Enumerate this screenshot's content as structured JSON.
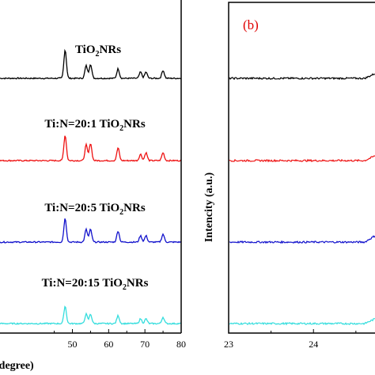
{
  "chart_data": [
    {
      "type": "line",
      "panel": "left",
      "title": "",
      "xlabel": "(degree)",
      "ylabel": "",
      "xlim": [
        20,
        80
      ],
      "xticks": [
        50,
        60,
        70,
        80
      ],
      "grid": false,
      "series": [
        {
          "name": "TiO2NRs",
          "label_main": "TiO",
          "label_sub": "2",
          "label_tail": "NRs",
          "color": "#000000",
          "peaks": [
            {
              "x": 48.0,
              "h": 36
            },
            {
              "x": 53.8,
              "h": 16
            },
            {
              "x": 55.0,
              "h": 18
            },
            {
              "x": 62.6,
              "h": 12
            },
            {
              "x": 68.8,
              "h": 8
            },
            {
              "x": 70.3,
              "h": 8
            },
            {
              "x": 75.0,
              "h": 10
            }
          ]
        },
        {
          "name": "Ti:N=20:1 TiO2NRs",
          "label_main": "Ti:N=20:1 TiO",
          "label_sub": "2",
          "label_tail": "NRs",
          "color": "#ee1111",
          "peaks": [
            {
              "x": 48.0,
              "h": 32
            },
            {
              "x": 53.8,
              "h": 20
            },
            {
              "x": 55.0,
              "h": 22
            },
            {
              "x": 62.6,
              "h": 16
            },
            {
              "x": 68.8,
              "h": 8
            },
            {
              "x": 70.3,
              "h": 10
            },
            {
              "x": 75.0,
              "h": 10
            }
          ]
        },
        {
          "name": "Ti:N=20:5 TiO2NRs",
          "label_main": "Ti:N=20:5 TiO",
          "label_sub": "2",
          "label_tail": "NRs",
          "color": "#1111cc",
          "peaks": [
            {
              "x": 48.0,
              "h": 30
            },
            {
              "x": 53.8,
              "h": 16
            },
            {
              "x": 55.0,
              "h": 16
            },
            {
              "x": 62.6,
              "h": 14
            },
            {
              "x": 68.8,
              "h": 8
            },
            {
              "x": 70.3,
              "h": 8
            },
            {
              "x": 75.0,
              "h": 10
            }
          ]
        },
        {
          "name": "Ti:N=20:15 TiO2NRs",
          "label_main": "Ti:N=20:15 TiO",
          "label_sub": "2",
          "label_tail": "NRs",
          "color": "#33dddd",
          "peaks": [
            {
              "x": 48.0,
              "h": 22
            },
            {
              "x": 53.8,
              "h": 12
            },
            {
              "x": 55.0,
              "h": 12
            },
            {
              "x": 62.6,
              "h": 10
            },
            {
              "x": 68.8,
              "h": 6
            },
            {
              "x": 70.3,
              "h": 6
            },
            {
              "x": 75.0,
              "h": 8
            }
          ]
        }
      ]
    },
    {
      "type": "line",
      "panel": "right",
      "panel_label": "(b)",
      "title": "",
      "xlabel": "",
      "ylabel": "Intencity (a.u.)",
      "xlim": [
        23,
        24.8
      ],
      "xticks": [
        23,
        24
      ],
      "grid": false,
      "series": [
        {
          "color": "#000000",
          "rise_end": 6
        },
        {
          "color": "#ee1111",
          "rise_end": 6
        },
        {
          "color": "#1111cc",
          "rise_end": 8
        },
        {
          "color": "#33dddd",
          "rise_end": 6
        }
      ]
    }
  ]
}
